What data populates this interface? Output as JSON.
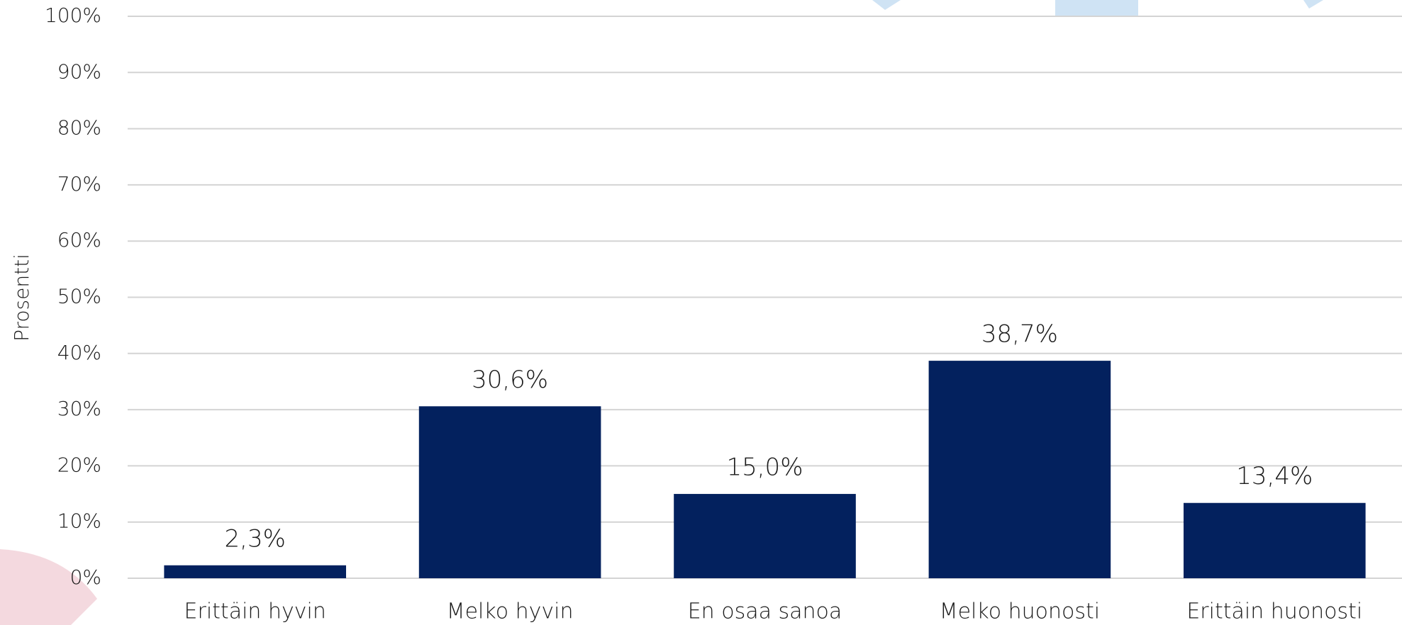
{
  "chart_data": {
    "type": "bar",
    "y_label": "Prosentti",
    "categories": [
      "Erittäin hyvin",
      "Melko hyvin",
      "En osaa sanoa",
      "Melko huonosti",
      "Erittäin huonosti"
    ],
    "values": [
      2.3,
      30.6,
      15.0,
      38.7,
      13.4
    ],
    "value_labels": [
      "2,3%",
      "30,6%",
      "15,0%",
      "38,7%",
      "13,4%"
    ],
    "color": "#03215e",
    "ylim": [
      0,
      100
    ],
    "yticks": [
      {
        "value": 0,
        "label": "0%"
      },
      {
        "value": 10,
        "label": "10%"
      },
      {
        "value": 20,
        "label": "20%"
      },
      {
        "value": 30,
        "label": "30%"
      },
      {
        "value": 40,
        "label": "40%"
      },
      {
        "value": 50,
        "label": "50%"
      },
      {
        "value": 60,
        "label": "60%"
      },
      {
        "value": 70,
        "label": "70%"
      },
      {
        "value": 80,
        "label": "80%"
      },
      {
        "value": 90,
        "label": "90%"
      },
      {
        "value": 100,
        "label": "100%"
      }
    ],
    "grid": true
  }
}
